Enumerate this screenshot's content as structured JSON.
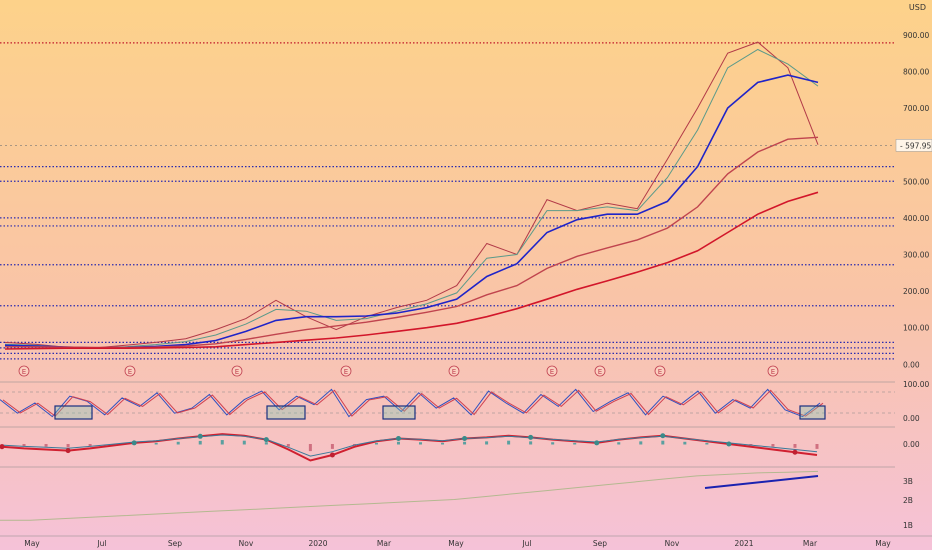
{
  "chart_data": {
    "type": "line",
    "currency": "USD",
    "price": {
      "last_price": 597.95,
      "ylim": [
        -10,
        935
      ],
      "y_ticks": [
        "900.00",
        "800.00",
        "700.00",
        "600.00",
        "500.00",
        "400.00",
        "300.00",
        "200.00",
        "100.00",
        "0.00"
      ],
      "y_tick_values": [
        900,
        800,
        700,
        600,
        500,
        400,
        300,
        200,
        100,
        0
      ],
      "horizontal_levels": [
        878,
        540,
        500,
        400,
        378,
        272,
        160,
        60,
        45,
        30,
        15
      ],
      "series": [
        {
          "values": [
            60,
            55,
            47,
            45,
            52,
            60,
            70,
            95,
            125,
            175,
            130,
            95,
            130,
            155,
            175,
            215,
            330,
            300,
            450,
            420,
            440,
            425,
            560,
            700,
            850,
            880,
            810,
            600
          ]
        },
        {
          "values": [
            55,
            52,
            47,
            44,
            48,
            54,
            62,
            80,
            110,
            150,
            145,
            120,
            125,
            145,
            165,
            195,
            290,
            300,
            420,
            420,
            430,
            420,
            510,
            640,
            810,
            860,
            820,
            760
          ]
        },
        {
          "values": [
            52,
            50,
            47,
            45,
            46,
            49,
            54,
            65,
            90,
            120,
            130,
            130,
            132,
            140,
            155,
            178,
            240,
            275,
            360,
            395,
            410,
            410,
            445,
            540,
            700,
            770,
            790,
            770
          ]
        },
        {
          "values": [
            48,
            48,
            47,
            46,
            46,
            47,
            50,
            56,
            68,
            82,
            95,
            105,
            115,
            128,
            142,
            158,
            190,
            215,
            262,
            295,
            318,
            340,
            372,
            430,
            520,
            580,
            615,
            620
          ]
        },
        {
          "values": [
            42,
            43,
            44,
            44,
            44,
            45,
            46,
            48,
            54,
            60,
            66,
            72,
            80,
            90,
            100,
            112,
            130,
            152,
            178,
            205,
            228,
            252,
            278,
            310,
            360,
            410,
            445,
            470
          ]
        }
      ]
    },
    "x_ticks": [
      "May",
      "Jul",
      "Sep",
      "Nov",
      "2020",
      "Mar",
      "May",
      "Jul",
      "Sep",
      "Nov",
      "2021",
      "Mar",
      "May"
    ],
    "earnings_markers": [
      "E",
      "E",
      "E",
      "E",
      "E",
      "E",
      "E",
      "E",
      "E"
    ],
    "oscillator": {
      "y_ticks": [
        "100.00",
        "0.00"
      ],
      "ylim": [
        0,
        100
      ],
      "values": [
        60,
        20,
        50,
        10,
        70,
        55,
        15,
        65,
        40,
        80,
        20,
        35,
        75,
        15,
        60,
        85,
        30,
        70,
        45,
        90,
        10,
        60,
        70,
        25,
        80,
        35,
        65,
        15,
        85,
        50,
        20,
        75,
        40,
        90,
        25,
        55,
        80,
        15,
        70,
        45,
        85,
        20,
        60,
        35,
        90,
        30,
        10,
        50
      ]
    },
    "momentum": {
      "y_ticks": [
        "0.00"
      ],
      "values": [
        -5,
        -8,
        -10,
        -12,
        -8,
        -3,
        2,
        5,
        10,
        14,
        18,
        15,
        8,
        -10,
        -30,
        -20,
        -5,
        5,
        10,
        8,
        5,
        10,
        12,
        15,
        12,
        8,
        5,
        2,
        8,
        12,
        15,
        10,
        5,
        0,
        -5,
        -10,
        -15,
        -20
      ]
    },
    "bottom_panel": {
      "y_ticks": [
        "3B",
        "2B",
        "1B"
      ],
      "values": [
        1.5,
        1.5,
        1.55,
        1.6,
        1.65,
        1.7,
        1.75,
        1.8,
        1.85,
        1.9,
        1.95,
        2.0,
        2.05,
        2.1,
        2.15,
        2.2,
        2.3,
        2.4,
        2.5,
        2.6,
        2.7,
        2.8,
        2.9,
        3.0,
        3.05,
        3.1,
        3.12,
        3.15
      ]
    }
  }
}
